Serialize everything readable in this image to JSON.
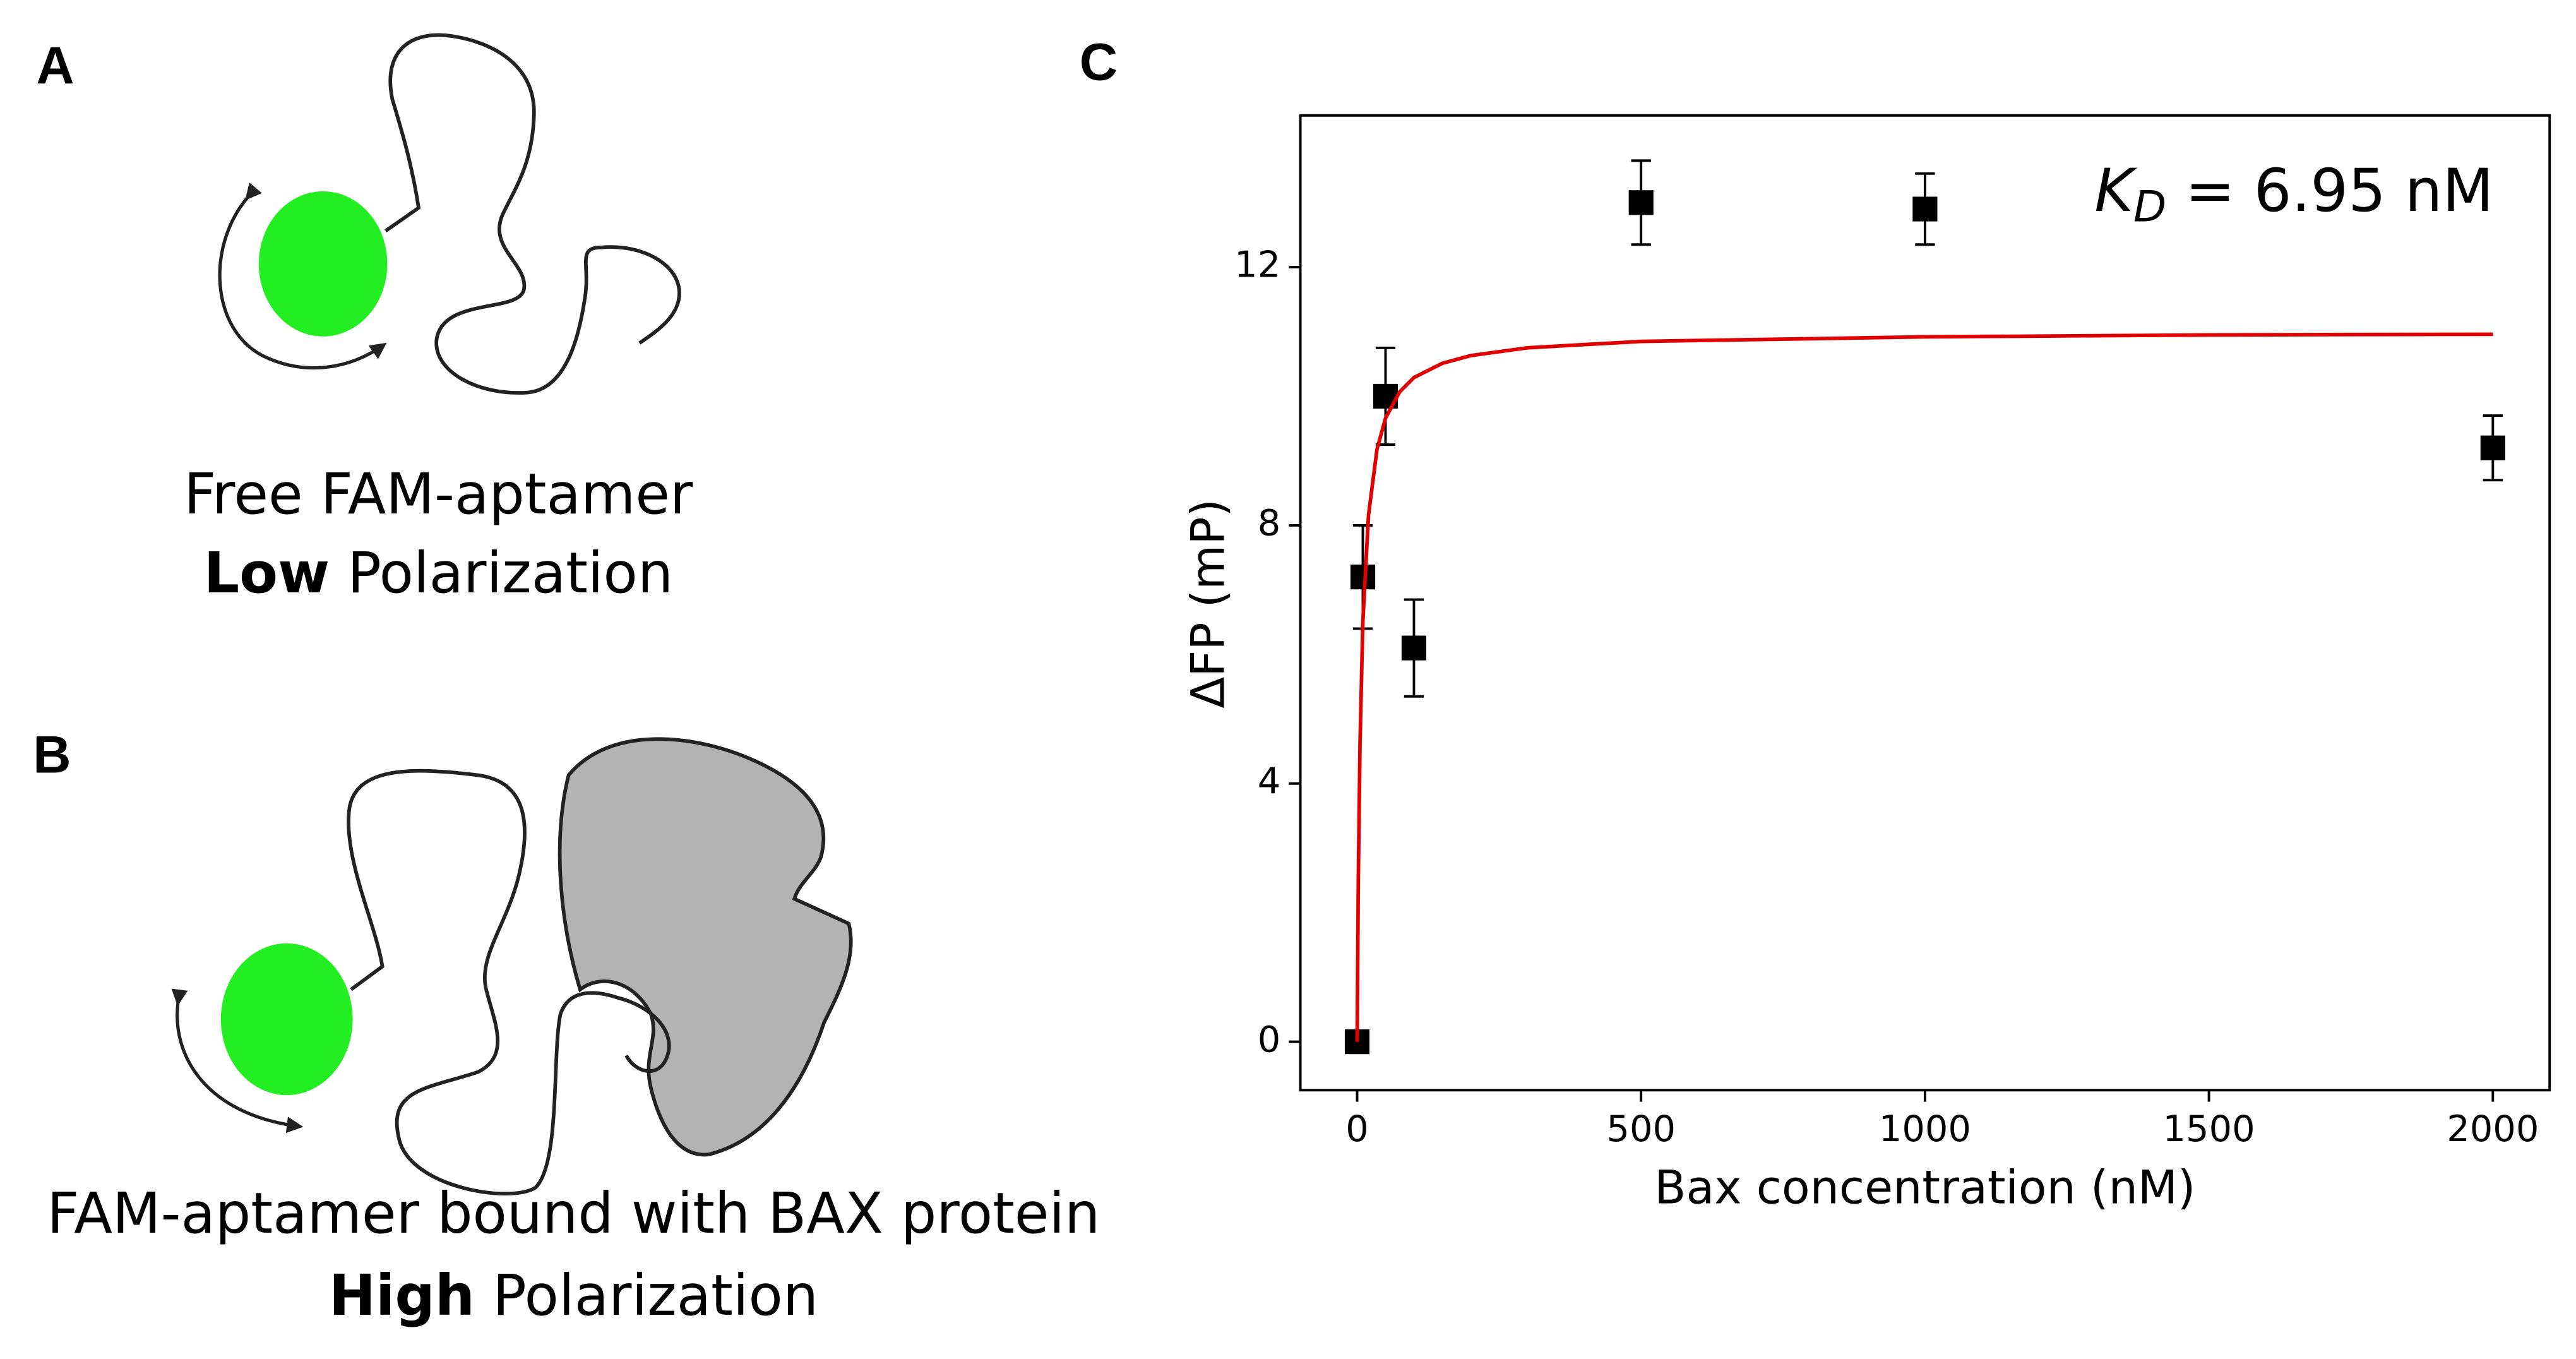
{
  "panel_a": {
    "label": "A",
    "line1": "Free FAM-aptamer",
    "line2_bold": "Low",
    "line2": "Polarization"
  },
  "panel_b": {
    "label": "B",
    "line1": "FAM-aptamer bound with BAX protein",
    "line2_bold": "High",
    "line2": "Polarization"
  },
  "chart_data": {
    "label": "C",
    "type": "scatter",
    "xlabel": "Bax concentration (nM)",
    "ylabel": "ΔFP (mP)",
    "annotation": {
      "symbol": "K",
      "subscript": "D",
      "text": "= 6.95 nM"
    },
    "xlim": [
      -100,
      2100
    ],
    "ylim": [
      -0.75,
      14.35
    ],
    "xticks": [
      0,
      500,
      1000,
      1500,
      2000
    ],
    "yticks": [
      0,
      4,
      8,
      12
    ],
    "series": [
      {
        "type": "scatter",
        "color": "#000000",
        "x": [
          0,
          10,
          50,
          100,
          500,
          1000,
          2000
        ],
        "values": [
          0,
          7.2,
          10.0,
          6.1,
          13.0,
          12.9,
          9.2
        ],
        "errors": [
          0,
          0.8,
          0.75,
          0.75,
          0.65,
          0.55,
          0.5
        ]
      },
      {
        "type": "line",
        "color": "#e00000",
        "x": [
          0,
          2,
          5,
          10,
          20,
          35,
          50,
          75,
          100,
          150,
          200,
          300,
          500,
          1000,
          1500,
          2000
        ],
        "values": [
          0,
          2.46,
          4.6,
          6.5,
          8.16,
          9.18,
          9.66,
          10.07,
          10.29,
          10.51,
          10.63,
          10.75,
          10.85,
          10.92,
          10.95,
          10.96
        ]
      }
    ]
  }
}
